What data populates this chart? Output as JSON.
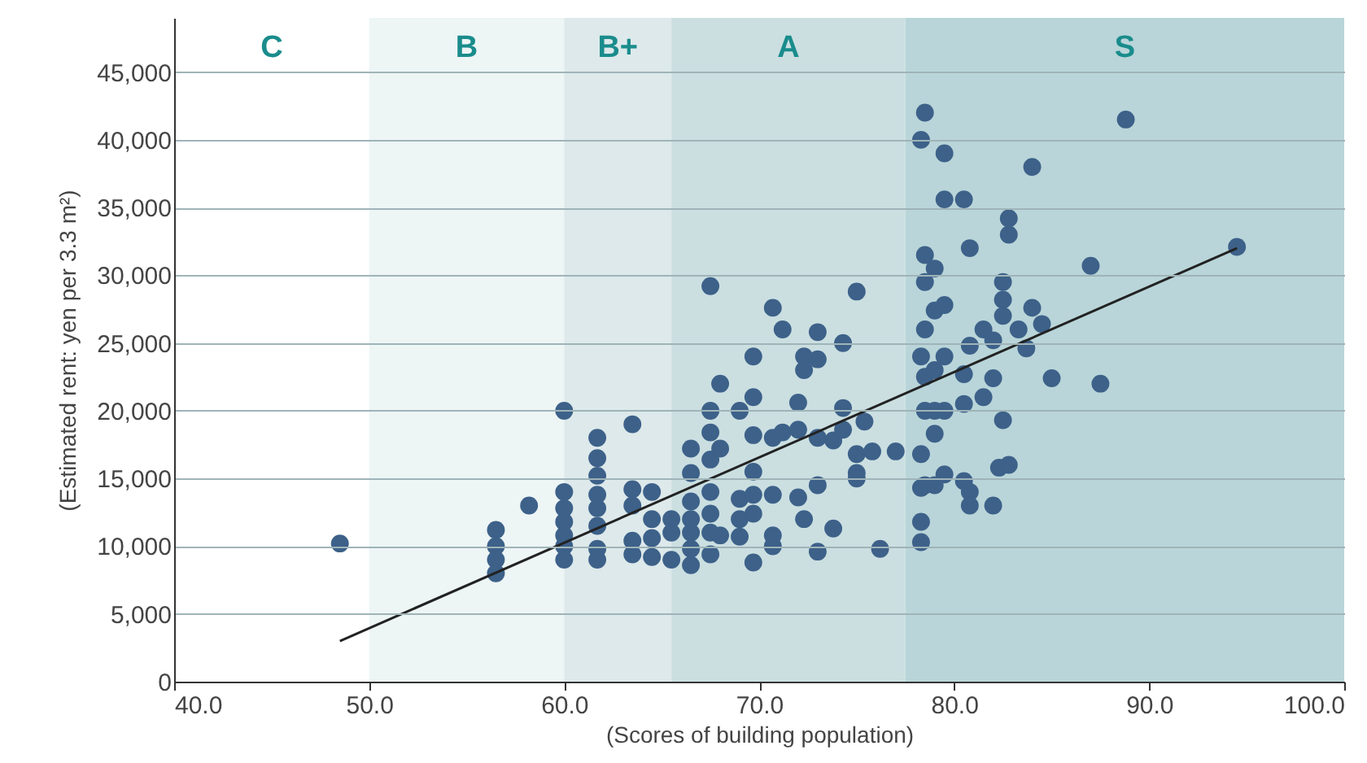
{
  "chart_data": {
    "type": "scatter",
    "xlabel": "(Scores of building population)",
    "ylabel": "(Estimated rent: yen per 3.3 m²)",
    "xlim": [
      40,
      100
    ],
    "xticks": [
      {
        "value": 40,
        "label": "40.0"
      },
      {
        "value": 50,
        "label": "50.0"
      },
      {
        "value": 60,
        "label": "60.0"
      },
      {
        "value": 70,
        "label": "70.0"
      },
      {
        "value": 80,
        "label": "80.0"
      },
      {
        "value": 90,
        "label": "90.0"
      },
      {
        "value": 100,
        "label": "100.0"
      }
    ],
    "ylim": [
      0,
      49000
    ],
    "yticks": [
      0,
      {
        "value": 5000,
        "label": "5,000"
      },
      {
        "value": 10000,
        "label": "10,000"
      },
      {
        "value": 15000,
        "label": "15,000"
      },
      {
        "value": 20000,
        "label": "20,000"
      },
      {
        "value": 25000,
        "label": "25,000"
      },
      {
        "value": 30000,
        "label": "30,000"
      },
      {
        "value": 35000,
        "label": "35,000"
      },
      {
        "value": 40000,
        "label": "40,000"
      },
      {
        "value": 45000,
        "label": "45,000"
      }
    ],
    "grid": "y",
    "annotations": [
      "C"
    ],
    "bands": [
      {
        "axis": "x",
        "from": 50,
        "to": 60,
        "label": "B",
        "color": "#edf5f5"
      },
      {
        "axis": "x",
        "from": 60,
        "to": 65.5,
        "label": "B+",
        "color": "#dde9ea"
      },
      {
        "axis": "x",
        "from": 65.5,
        "to": 77.5,
        "label": "A",
        "color": "#cbdfe1"
      },
      {
        "axis": "x",
        "from": 77.5,
        "to": 100,
        "label": "S",
        "color": "#b9d5d9"
      }
    ],
    "series": [
      {
        "color": "#3d6189",
        "marker": "circle",
        "x": [
          48.5,
          56.5,
          56.5,
          56.5,
          56.5,
          58.2,
          60,
          60,
          60,
          60,
          60,
          60,
          60,
          61.7,
          61.7,
          61.7,
          61.7,
          61.7,
          61.7,
          61.7,
          61.7,
          63.5,
          63.5,
          63.5,
          63.5,
          63.5,
          64.5,
          64.5,
          64.5,
          64.5,
          65.5,
          65.5,
          65.5,
          66.5,
          66.5,
          66.5,
          66.5,
          66.5,
          66.5,
          66.5,
          67.5,
          67.5,
          67.5,
          67.5,
          67.5,
          67.5,
          67.5,
          67.5,
          68,
          68,
          68,
          69,
          69,
          69,
          69,
          69.7,
          69.7,
          69.7,
          69.7,
          69.7,
          69.7,
          69.7,
          70.7,
          70.7,
          70.7,
          70.7,
          70.7,
          71.2,
          71.2,
          72,
          72,
          72,
          72.3,
          72.3,
          72.3,
          73,
          73,
          73,
          73,
          73,
          73.8,
          73.8,
          74.3,
          74.3,
          74.3,
          75,
          75,
          75,
          75,
          75.4,
          75.8,
          76.2,
          77,
          78.3,
          78.3,
          78.3,
          78.3,
          78.3,
          78.3,
          78.5,
          78.5,
          78.5,
          78.5,
          78.5,
          78.5,
          78.5,
          79,
          79,
          79,
          79,
          79,
          79,
          79.5,
          79.5,
          79.5,
          79.5,
          79.5,
          79.5,
          80.5,
          80.5,
          80.5,
          80.5,
          80.8,
          80.8,
          80.8,
          80.8,
          81.5,
          81.5,
          82,
          82,
          82,
          82.3,
          82.5,
          82.5,
          82.5,
          82.5,
          82.8,
          82.8,
          82.8,
          83.3,
          83.7,
          84,
          84,
          84.5,
          85,
          87,
          87.5,
          88.8,
          94.5
        ],
        "values": [
          10200,
          11200,
          10000,
          9000,
          8000,
          13000,
          20000,
          14000,
          12800,
          11800,
          10800,
          10000,
          9000,
          18000,
          16500,
          15200,
          13800,
          12800,
          11500,
          9800,
          9000,
          19000,
          14200,
          13000,
          10400,
          9400,
          14000,
          12000,
          10600,
          9200,
          12000,
          11000,
          9000,
          17200,
          15400,
          13300,
          12000,
          11000,
          9800,
          8600,
          29200,
          20000,
          18400,
          16400,
          14000,
          12400,
          11000,
          9400,
          22000,
          17200,
          10800,
          20000,
          13500,
          12000,
          10700,
          24000,
          21000,
          18200,
          15500,
          13800,
          12400,
          8800,
          27600,
          18000,
          13800,
          10800,
          10000,
          26000,
          18400,
          20600,
          18600,
          13600,
          24000,
          23000,
          12000,
          25800,
          23800,
          18000,
          14500,
          9600,
          17800,
          11300,
          25000,
          20200,
          18600,
          28800,
          16800,
          15400,
          15000,
          19200,
          17000,
          9800,
          17000,
          40000,
          24000,
          16800,
          14300,
          11800,
          10300,
          42000,
          31500,
          29500,
          26000,
          22500,
          20000,
          14500,
          30500,
          27400,
          23000,
          20000,
          18300,
          14500,
          39000,
          35600,
          27800,
          24000,
          20000,
          15300,
          35600,
          22700,
          20500,
          14800,
          32000,
          24800,
          14000,
          13000,
          26000,
          21000,
          25200,
          22400,
          13000,
          15800,
          29500,
          28200,
          27000,
          19300,
          34200,
          33000,
          16000,
          26000,
          24600,
          38000,
          27600,
          26400,
          22400,
          30700,
          22000,
          41500,
          32100
        ]
      },
      {
        "type": "line",
        "color": "#222222",
        "x": [
          48.5,
          94.5
        ],
        "values": [
          3000,
          32000
        ]
      }
    ]
  }
}
